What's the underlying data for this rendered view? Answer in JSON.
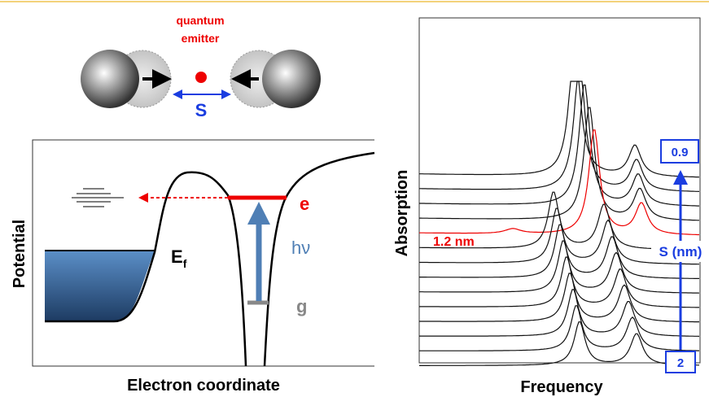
{
  "emitter_label": {
    "line1": "quantum",
    "line2": "emitter"
  },
  "separation_label": "S",
  "potential_panel": {
    "y_axis": "Potential",
    "x_axis": "Electron coordinate",
    "excited_state": "e",
    "fermi_level": {
      "label": "E",
      "subscript": "f"
    },
    "photon": "hν",
    "ground_state": "g"
  },
  "absorption_panel": {
    "y_axis": "Absorption",
    "x_axis": "Frequency",
    "highlight_label": "1.2 nm",
    "top_label": "0.9",
    "bottom_label": "2",
    "arrow_label": "S (nm)"
  }
}
